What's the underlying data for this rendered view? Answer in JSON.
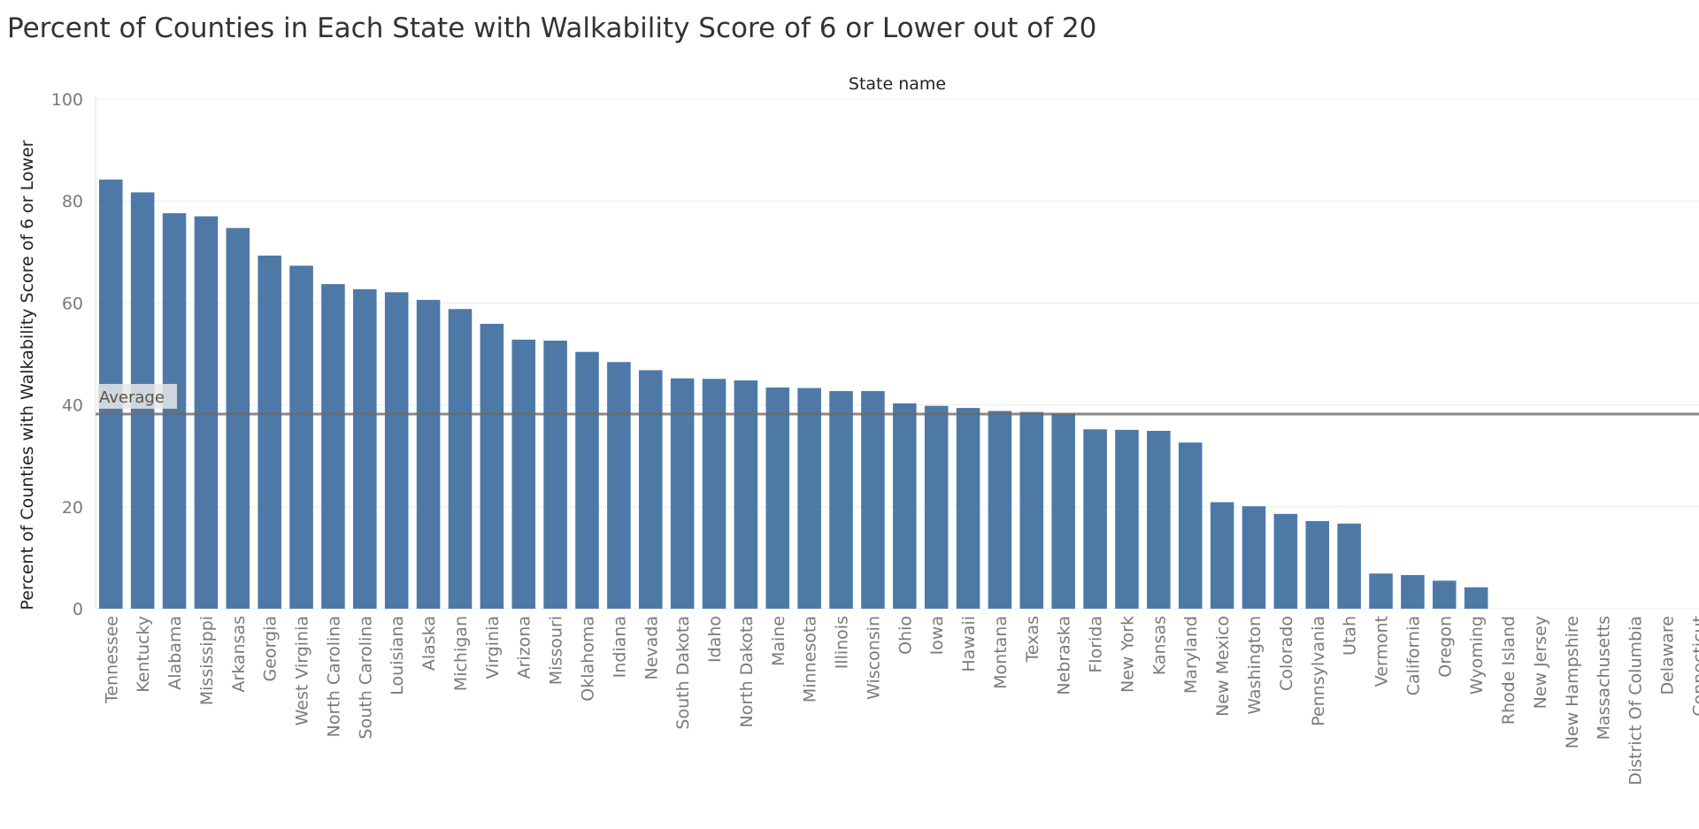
{
  "chart_data": {
    "type": "bar",
    "title": "Percent of Counties in Each State with Walkability Score of 6 or Lower out of 20",
    "xlabel": "State name",
    "ylabel": "Percent of Counties with Walkability Score of 6 or Lower",
    "ylim": [
      0,
      100
    ],
    "yticks": [
      0,
      20,
      40,
      60,
      80,
      100
    ],
    "grid": true,
    "bar_color": "#4e79a7",
    "categories": [
      "Tennessee",
      "Kentucky",
      "Alabama",
      "Mississippi",
      "Arkansas",
      "Georgia",
      "West Virginia",
      "North Carolina",
      "South Carolina",
      "Louisiana",
      "Alaska",
      "Michigan",
      "Virginia",
      "Arizona",
      "Missouri",
      "Oklahoma",
      "Indiana",
      "Nevada",
      "South Dakota",
      "Idaho",
      "North Dakota",
      "Maine",
      "Minnesota",
      "Illinois",
      "Wisconsin",
      "Ohio",
      "Iowa",
      "Hawaii",
      "Montana",
      "Texas",
      "Nebraska",
      "Florida",
      "New York",
      "Kansas",
      "Maryland",
      "New Mexico",
      "Washington",
      "Colorado",
      "Pennsylvania",
      "Utah",
      "Vermont",
      "California",
      "Oregon",
      "Wyoming",
      "Rhode Island",
      "New Jersey",
      "New Hampshire",
      "Massachusetts",
      "District Of Columbia",
      "Delaware",
      "Connecticut"
    ],
    "values": [
      84.2,
      81.7,
      77.6,
      77.0,
      74.7,
      69.3,
      67.3,
      63.7,
      62.7,
      62.1,
      60.6,
      58.8,
      55.9,
      52.8,
      52.6,
      50.4,
      48.4,
      46.8,
      45.2,
      45.1,
      44.8,
      43.4,
      43.3,
      42.7,
      42.7,
      40.3,
      39.8,
      39.4,
      38.8,
      38.6,
      38.3,
      35.2,
      35.1,
      34.9,
      32.6,
      20.9,
      20.1,
      18.6,
      17.2,
      16.7,
      6.9,
      6.6,
      5.5,
      4.2,
      0,
      0,
      0,
      0,
      0,
      0,
      0
    ],
    "reference_line": {
      "label": "Average",
      "value": 38.2,
      "color": "#6b6b6b"
    }
  }
}
